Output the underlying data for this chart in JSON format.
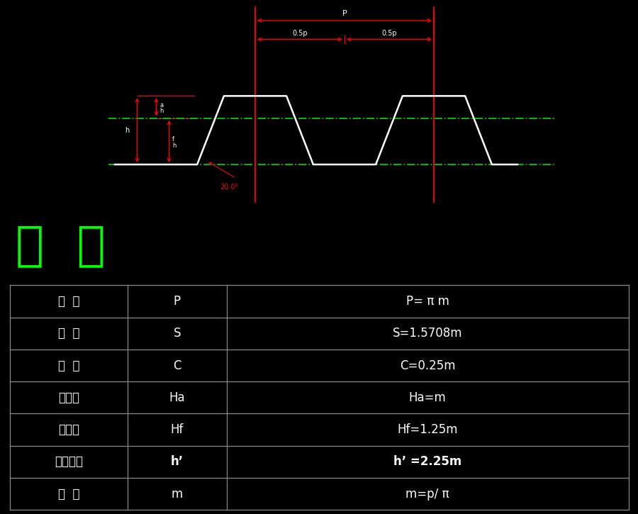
{
  "bg_color": "#000000",
  "title_zh": "齿  条",
  "title_color": "#00ff00",
  "table_rows": [
    [
      "齿  距",
      "P",
      "P= π m"
    ],
    [
      "齿  厚",
      "S",
      "S=1.5708m"
    ],
    [
      "顶  隙",
      "C",
      "C=0.25m"
    ],
    [
      "齿顶高",
      "Ha",
      "Ha=m"
    ],
    [
      "齿根高",
      "Hf",
      "Hf=1.25m"
    ],
    [
      "工作高度",
      "h’",
      "h’ =2.25m"
    ],
    [
      "模  数",
      "m",
      "m=p/ π"
    ]
  ],
  "bold_rows": [
    5
  ],
  "table_border_color": "#888888",
  "table_text_color": "#ffffff",
  "diagram_color_white": "#ffffff",
  "diagram_color_red": "#ff0000",
  "diagram_color_green": "#00cc00",
  "annotation_20": "20.0°"
}
